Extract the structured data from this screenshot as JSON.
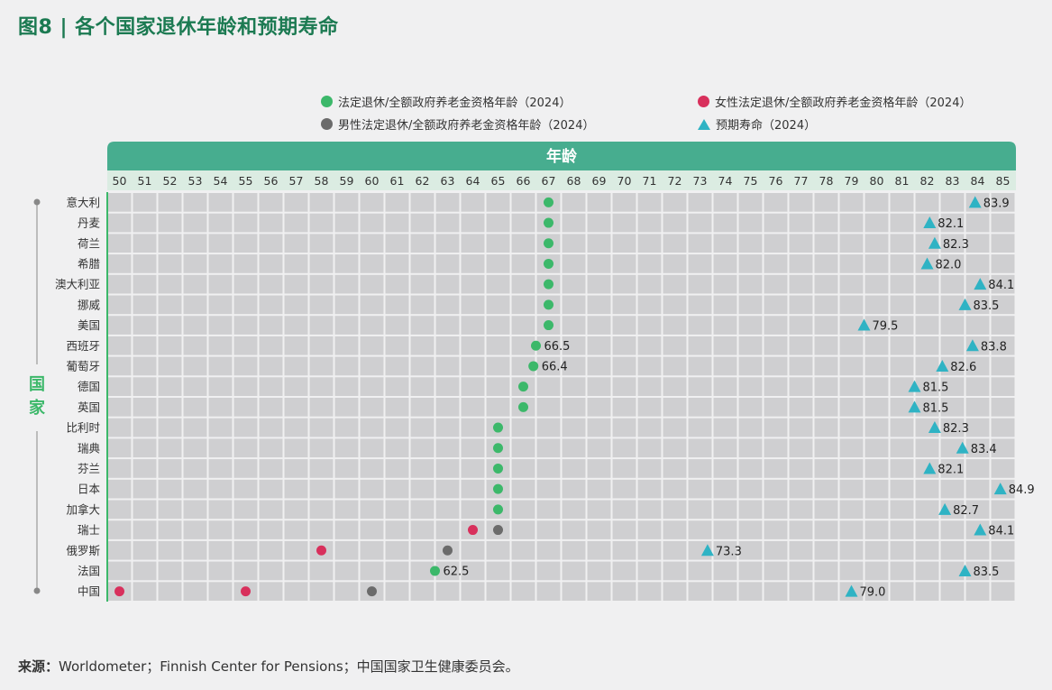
{
  "title": "图8 | 各个国家退休年龄和预期寿命",
  "legend": {
    "standard": "法定退休/全额政府养老金资格年龄（2024）",
    "female": "女性法定退休/全额政府养老金资格年龄（2024）",
    "male": "男性法定退休/全额政府养老金资格年龄（2024）",
    "life": "预期寿命（2024）"
  },
  "axis_header": "年龄",
  "y_axis_label": "国家",
  "source_label": "来源：",
  "source_text": "Worldometer；Finnish Center for Pensions；中国国家卫生健康委员会。",
  "colors": {
    "standard": "#3cb86a",
    "female": "#d8305c",
    "male": "#6b6b6b",
    "life": "#2fb3c4",
    "header": "#47ad8f",
    "cell": "#cfcfd1",
    "tickband": "#dbece2"
  },
  "chart_data": {
    "type": "scatter",
    "xlabel": "年龄",
    "ylabel": "国家",
    "xlim": [
      50,
      85
    ],
    "x_ticks": [
      "50",
      "51",
      "52",
      "53",
      "54",
      "55",
      "56",
      "57",
      "58",
      "59",
      "60",
      "61",
      "62",
      "63",
      "64",
      "65",
      "66",
      "67",
      "68",
      "69",
      "70",
      "71",
      "72",
      "73",
      "74",
      "75",
      "76",
      "77",
      "78",
      "79",
      "80",
      "81",
      "82",
      "83",
      "84",
      "85"
    ],
    "countries": [
      {
        "name": "意大利",
        "standard": 67,
        "life": 83.9
      },
      {
        "name": "丹麦",
        "standard": 67,
        "life": 82.1
      },
      {
        "name": "荷兰",
        "standard": 67,
        "life": 82.3
      },
      {
        "name": "希腊",
        "standard": 67,
        "life": 82.0
      },
      {
        "name": "澳大利亚",
        "standard": 67,
        "life": 84.1
      },
      {
        "name": "挪威",
        "standard": 67,
        "life": 83.5
      },
      {
        "name": "美国",
        "standard": 67,
        "life": 79.5
      },
      {
        "name": "西班牙",
        "standard": 66.5,
        "standard_label": "66.5",
        "life": 83.8
      },
      {
        "name": "葡萄牙",
        "standard": 66.4,
        "standard_label": "66.4",
        "life": 82.6
      },
      {
        "name": "德国",
        "standard": 66,
        "life": 81.5
      },
      {
        "name": "英国",
        "standard": 66,
        "life": 81.5
      },
      {
        "name": "比利时",
        "standard": 65,
        "life": 82.3
      },
      {
        "name": "瑞典",
        "standard": 65,
        "life": 83.4
      },
      {
        "name": "芬兰",
        "standard": 65,
        "life": 82.1
      },
      {
        "name": "日本",
        "standard": 65,
        "life": 84.9
      },
      {
        "name": "加拿大",
        "standard": 65,
        "life": 82.7
      },
      {
        "name": "瑞士",
        "female": 64,
        "male": 65,
        "life": 84.1
      },
      {
        "name": "俄罗斯",
        "female": 58,
        "male": 63,
        "life": 73.3
      },
      {
        "name": "法国",
        "standard": 62.5,
        "standard_label": "62.5",
        "life": 83.5
      },
      {
        "name": "中国",
        "female": [
          50,
          55
        ],
        "male": 60,
        "life": 79.0
      }
    ]
  }
}
